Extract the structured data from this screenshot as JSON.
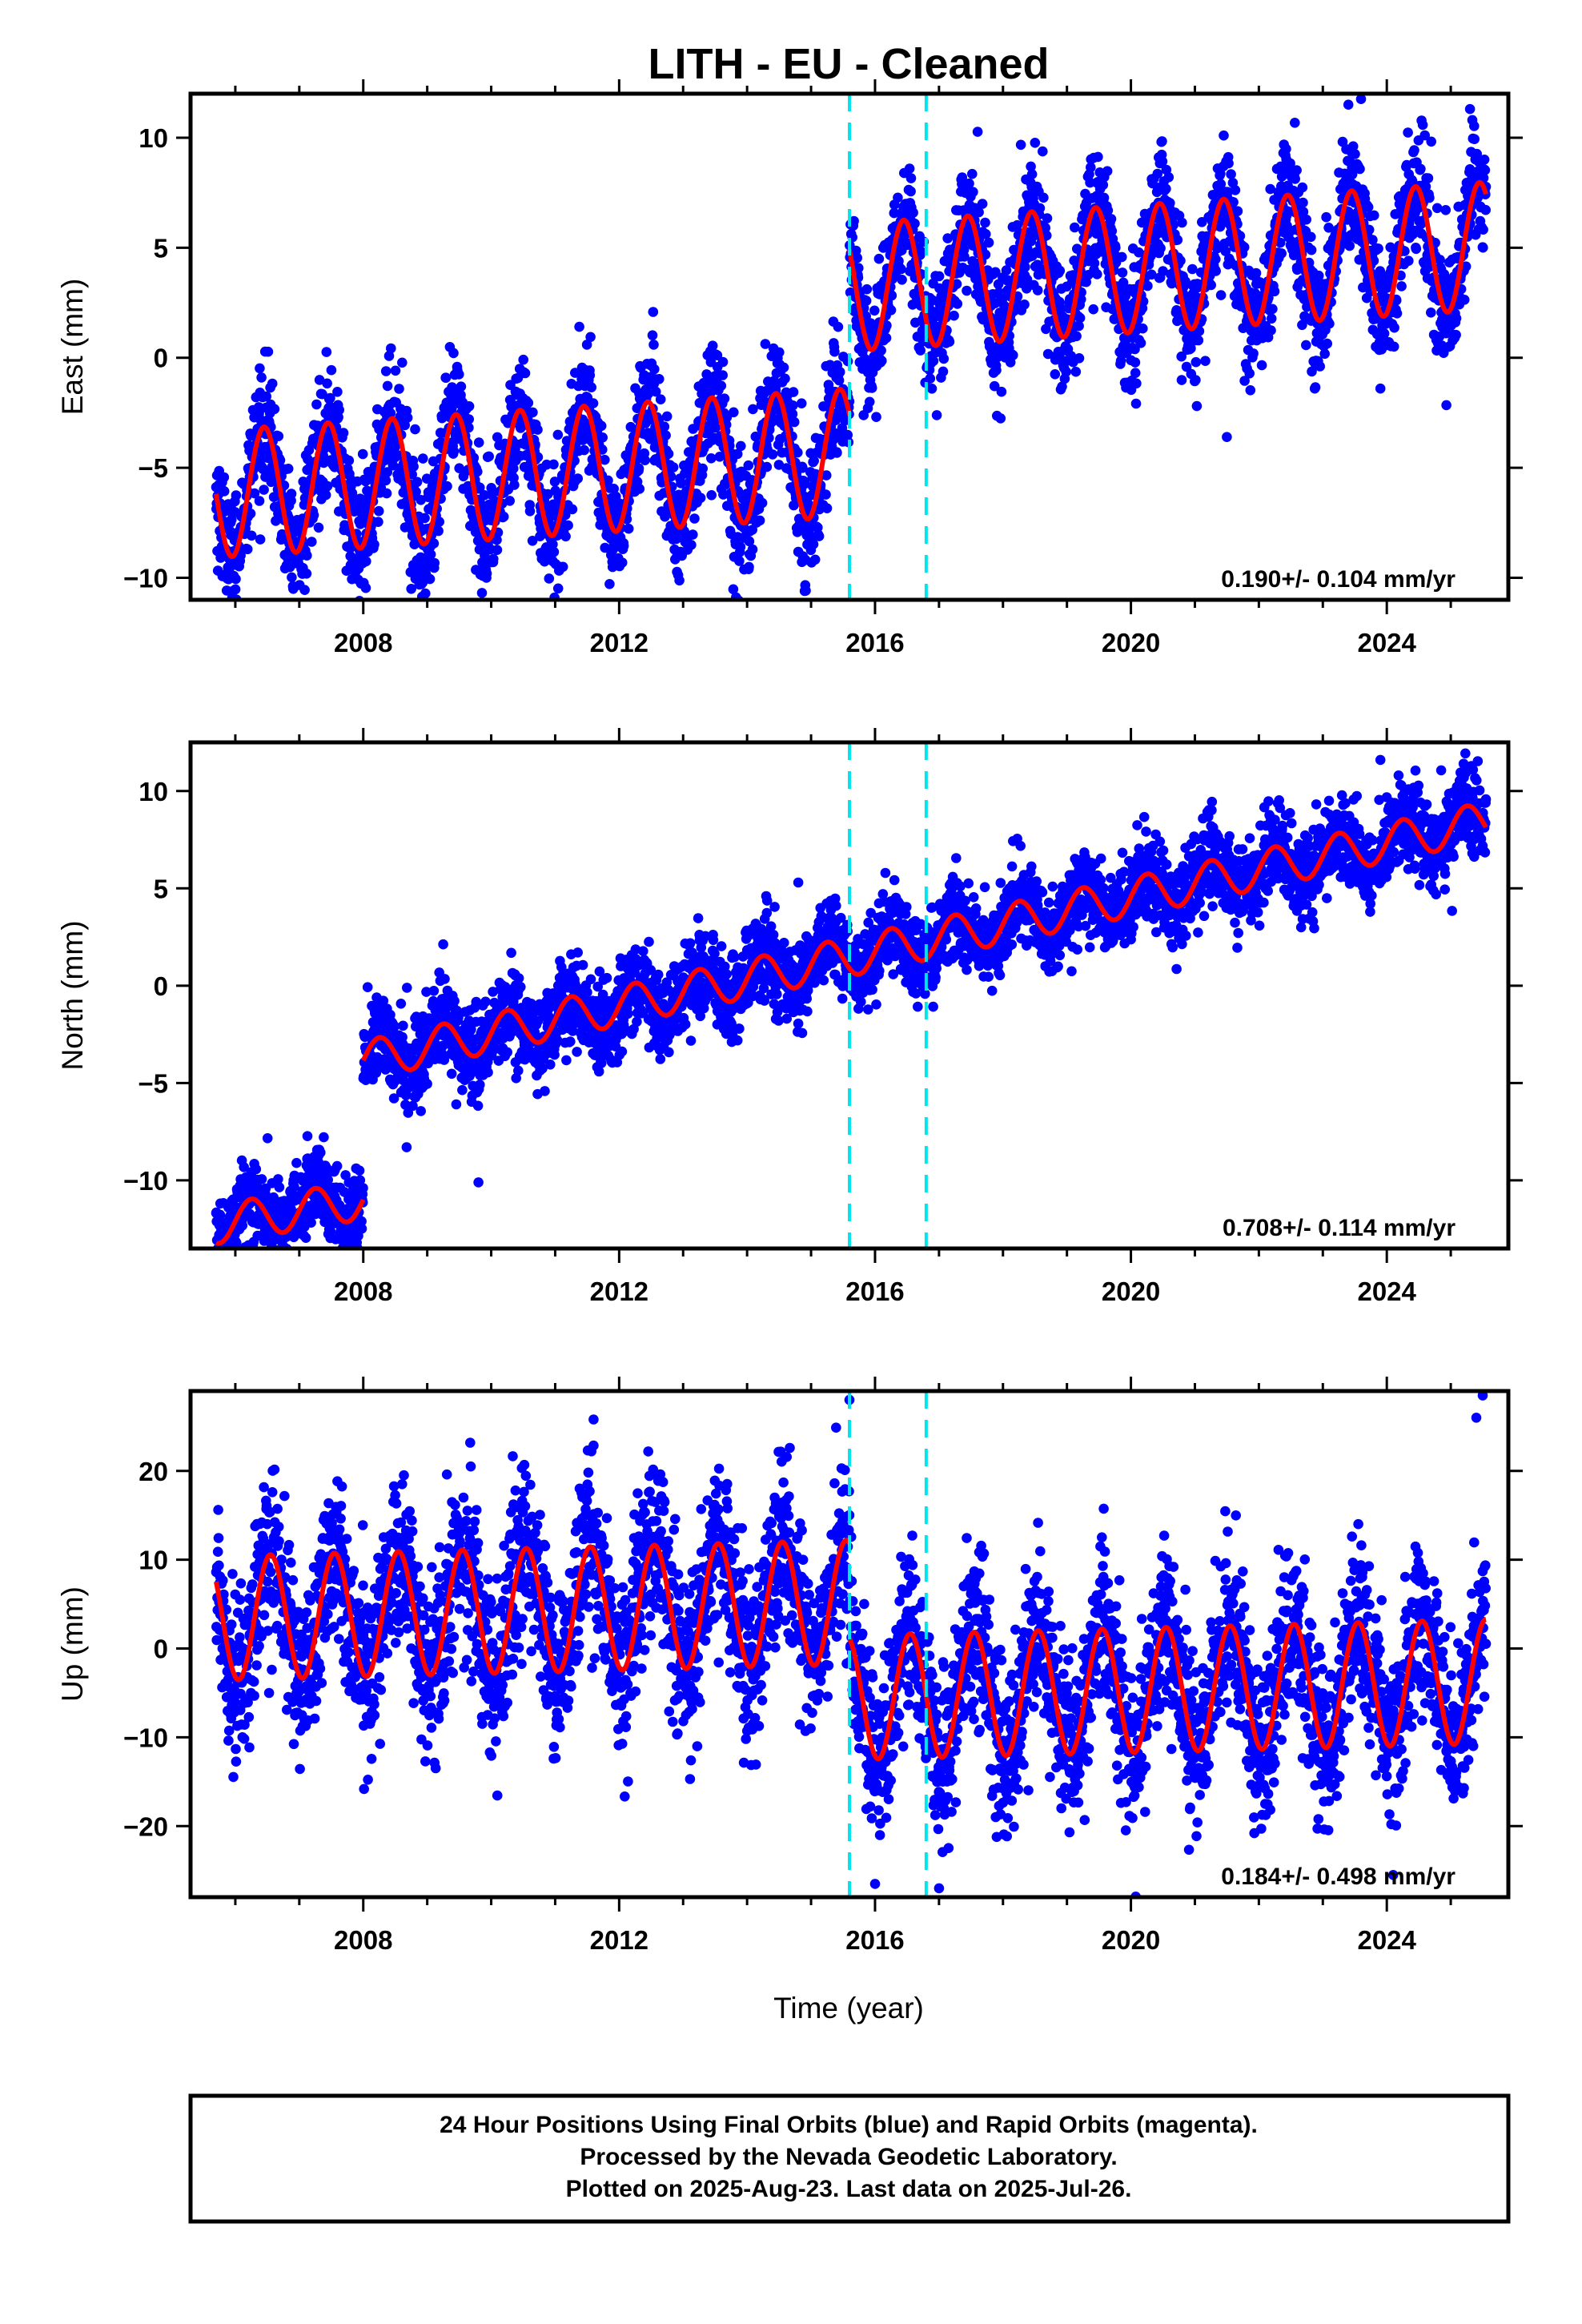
{
  "title": "LITH  - EU - Cleaned",
  "xlabel": "Time (year)",
  "footer": {
    "line1": "24 Hour Positions Using Final Orbits (blue) and Rapid Orbits (magenta).",
    "line2": "Processed by the Nevada Geodetic Laboratory.",
    "line3": "Plotted on 2025-Aug-23. Last data on 2025-Jul-26."
  },
  "colors": {
    "points": "#0000ff",
    "model": "#ff0000",
    "breaks": "#00e5ee",
    "frame": "#000000"
  },
  "chart_data": [
    {
      "type": "scatter",
      "name": "east",
      "ylabel": "East (mm)",
      "rate_text": "0.190+/- 0.104 mm/yr",
      "xlim": [
        2005.3,
        2025.9
      ],
      "ylim": [
        -11,
        12
      ],
      "xticks": [
        2008,
        2012,
        2016,
        2020,
        2024
      ],
      "yticks": [
        -10,
        -5,
        0,
        5,
        10
      ],
      "break_lines": [
        2015.6,
        2016.8
      ],
      "start": 2005.7,
      "end": 2025.55,
      "model": {
        "segments": [
          {
            "from": 2005.7,
            "to": 2015.6,
            "offset": -4.3,
            "rate": 0.19,
            "amplitude": 2.9,
            "peak": 0.45
          },
          {
            "from": 2015.6,
            "to": 2025.55,
            "offset": 3.2,
            "rate": 0.19,
            "amplitude": 2.9,
            "peak": 0.45
          }
        ]
      },
      "scatter_sd": 1.4,
      "outliers": [
        [
          2008.75,
          -10.5
        ],
        [
          2014.9,
          -10.6
        ],
        [
          2021.5,
          -3.6
        ],
        [
          2023.9,
          -1.4
        ],
        [
          2023.4,
          11.5
        ],
        [
          2025.3,
          11.3
        ]
      ]
    },
    {
      "type": "scatter",
      "name": "north",
      "ylabel": "North (mm)",
      "rate_text": "0.708+/- 0.114 mm/yr",
      "xlim": [
        2005.3,
        2025.9
      ],
      "ylim": [
        -13.5,
        12.5
      ],
      "xticks": [
        2008,
        2012,
        2016,
        2020,
        2024
      ],
      "yticks": [
        -10,
        -5,
        0,
        5,
        10
      ],
      "break_lines": [
        2015.6,
        2016.8
      ],
      "start": 2005.7,
      "end": 2025.55,
      "model": {
        "segments": [
          {
            "from": 2005.7,
            "to": 2008.0,
            "offset": -6.8,
            "rate": 0.55,
            "amplitude": 1.0,
            "peak": 0.25
          },
          {
            "from": 2008.0,
            "to": 2025.55,
            "offset": 1.5,
            "rate": 0.7,
            "amplitude": 1.0,
            "peak": 0.25
          }
        ]
      },
      "scatter_sd": 1.1,
      "outliers": [
        [
          2007.0,
          -11.7
        ],
        [
          2007.9,
          -13.2
        ],
        [
          2009.8,
          -10.1
        ],
        [
          2014.8,
          5.3
        ],
        [
          2023.9,
          11.6
        ],
        [
          2025.2,
          11.4
        ]
      ]
    },
    {
      "type": "scatter",
      "name": "up",
      "ylabel": "Up (mm)",
      "rate_text": "0.184+/- 0.498 mm/yr",
      "xlim": [
        2005.3,
        2025.9
      ],
      "ylim": [
        -28,
        29
      ],
      "xticks": [
        2008,
        2012,
        2016,
        2020,
        2024
      ],
      "yticks": [
        -20,
        -10,
        0,
        10,
        20
      ],
      "break_lines": [
        2015.6,
        2016.8
      ],
      "start": 2005.7,
      "end": 2025.55,
      "model": {
        "segments": [
          {
            "from": 2005.7,
            "to": 2015.6,
            "offset": 5.2,
            "rate": 0.18,
            "amplitude": 7.0,
            "peak": 0.55
          },
          {
            "from": 2015.6,
            "to": 2025.55,
            "offset": -5.5,
            "rate": 0.18,
            "amplitude": 7.0,
            "peak": 0.55
          }
        ]
      },
      "scatter_sd": 4.8,
      "outliers": [
        [
          2015.6,
          28.0
        ],
        [
          2016.0,
          -26.5
        ],
        [
          2017.0,
          -27.0
        ],
        [
          2025.5,
          28.5
        ],
        [
          2025.4,
          26.0
        ],
        [
          2011.6,
          25.8
        ],
        [
          2024.1,
          -25.5
        ]
      ]
    }
  ]
}
